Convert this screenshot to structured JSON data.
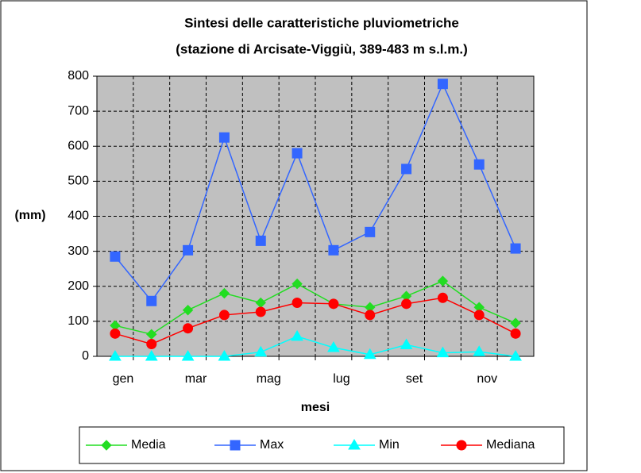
{
  "chart_data": {
    "type": "line",
    "title": "Sintesi delle caratteristiche pluviometriche",
    "subtitle": "(stazione di Arcisate-Viggiù, 389-483 m s.l.m.)",
    "x_label": "mesi",
    "y_label": "(mm)",
    "categories": [
      "gen",
      null,
      "mar",
      null,
      "mag",
      null,
      "lug",
      null,
      "set",
      null,
      "nov",
      null
    ],
    "series": [
      {
        "name": "Media",
        "color": "#22dd22",
        "marker": "diamond",
        "values": [
          88,
          63,
          132,
          180,
          153,
          207,
          150,
          140,
          172,
          215,
          140,
          95
        ]
      },
      {
        "name": "Max",
        "color": "#3366ff",
        "marker": "square",
        "values": [
          285,
          158,
          303,
          625,
          330,
          580,
          303,
          355,
          535,
          778,
          548,
          308
        ]
      },
      {
        "name": "Min",
        "color": "#00ffff",
        "marker": "triangle",
        "values": [
          0,
          0,
          0,
          0,
          12,
          57,
          25,
          5,
          33,
          10,
          13,
          0
        ]
      },
      {
        "name": "Mediana",
        "color": "#ff0000",
        "marker": "circle",
        "values": [
          65,
          35,
          80,
          118,
          127,
          153,
          150,
          118,
          150,
          167,
          118,
          65
        ]
      }
    ],
    "ylim": [
      0,
      800
    ],
    "yticks": [
      0,
      100,
      200,
      300,
      400,
      500,
      600,
      700,
      800
    ],
    "grid": true,
    "legend": "bottom"
  }
}
